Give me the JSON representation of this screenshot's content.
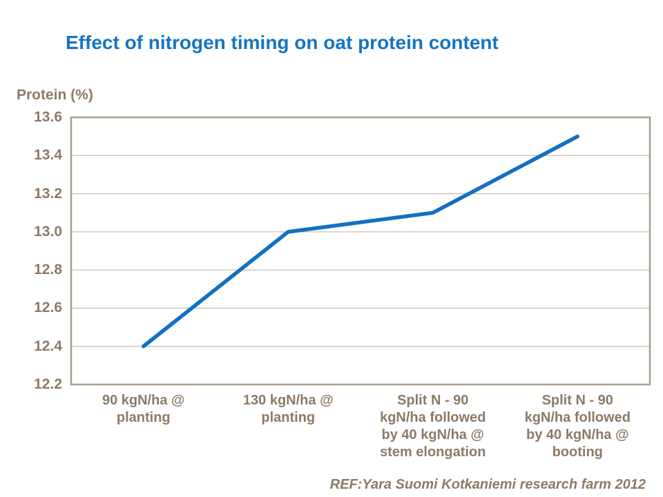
{
  "page": {
    "title": "Effect of nitrogen timing on oat protein content",
    "reference": "REF:Yara Suomi Kotkaniemi research farm 2012"
  },
  "chart_data": {
    "type": "line",
    "title": "Effect of nitrogen timing on oat protein content",
    "xlabel": "",
    "ylabel": "Protein (%)",
    "categories": [
      "90 kgN/ha @\nplanting",
      "130 kgN/ha @\nplanting",
      "Split N - 90\nkgN/ha followed\nby 40 kgN/ha @\nstem elongation",
      "Split N - 90\nkgN/ha followed\nby 40 kgN/ha @\nbooting"
    ],
    "series": [
      {
        "name": "Protein (%)",
        "values": [
          12.4,
          13.0,
          13.1,
          13.5
        ]
      }
    ],
    "ylim": [
      12.2,
      13.6
    ],
    "ytick_step": 0.2,
    "ytick_labels": [
      "13.6",
      "13.4",
      "13.2",
      "13.0",
      "12.8",
      "12.6",
      "12.4",
      "12.2"
    ],
    "grid": true,
    "legend": false,
    "annotation": "REF:Yara Suomi Kotkaniemi research farm 2012"
  },
  "colors": {
    "title": "#1574C4",
    "series_line": "#1270C2",
    "axis_text": "#8C7A66",
    "gridline": "#C8BEB2",
    "plot_border": "#A89C8C",
    "background": "#FFFFFF"
  }
}
